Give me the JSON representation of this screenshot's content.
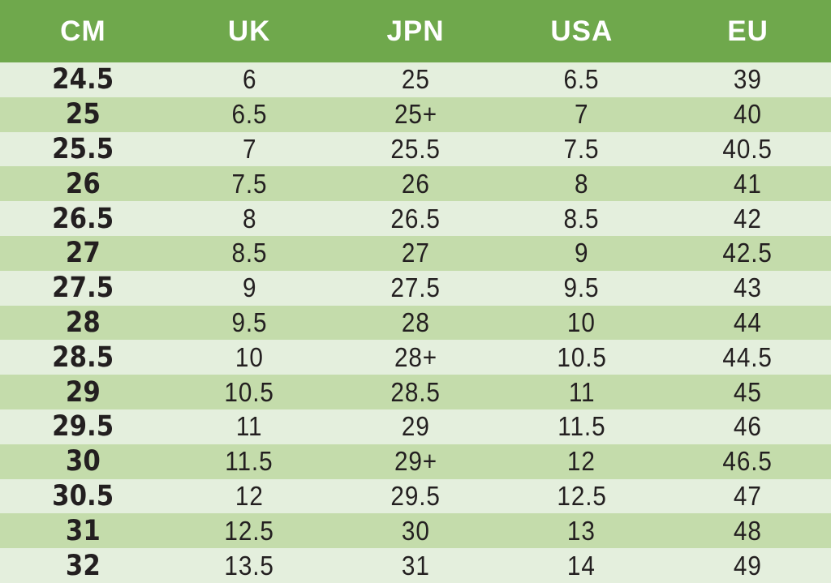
{
  "chart_data": {
    "type": "table",
    "columns": [
      "CM",
      "UK",
      "JPN",
      "USA",
      "EU"
    ],
    "rows": [
      [
        "24.5",
        "6",
        "25",
        "6.5",
        "39"
      ],
      [
        "25",
        "6.5",
        "25+",
        "7",
        "40"
      ],
      [
        "25.5",
        "7",
        "25.5",
        "7.5",
        "40.5"
      ],
      [
        "26",
        "7.5",
        "26",
        "8",
        "41"
      ],
      [
        "26.5",
        "8",
        "26.5",
        "8.5",
        "42"
      ],
      [
        "27",
        "8.5",
        "27",
        "9",
        "42.5"
      ],
      [
        "27.5",
        "9",
        "27.5",
        "9.5",
        "43"
      ],
      [
        "28",
        "9.5",
        "28",
        "10",
        "44"
      ],
      [
        "28.5",
        "10",
        "28+",
        "10.5",
        "44.5"
      ],
      [
        "29",
        "10.5",
        "28.5",
        "11",
        "45"
      ],
      [
        "29.5",
        "11",
        "29",
        "11.5",
        "46"
      ],
      [
        "30",
        "11.5",
        "29+",
        "12",
        "46.5"
      ],
      [
        "30.5",
        "12",
        "29.5",
        "12.5",
        "47"
      ],
      [
        "31",
        "12.5",
        "30",
        "13",
        "48"
      ],
      [
        "32",
        "13.5",
        "31",
        "14",
        "49"
      ]
    ]
  },
  "colors": {
    "header_bg": "#6fa84c",
    "header_text": "#ffffff",
    "row_light": "#e4efdd",
    "row_dark": "#c4dcab",
    "text": "#231f20"
  }
}
